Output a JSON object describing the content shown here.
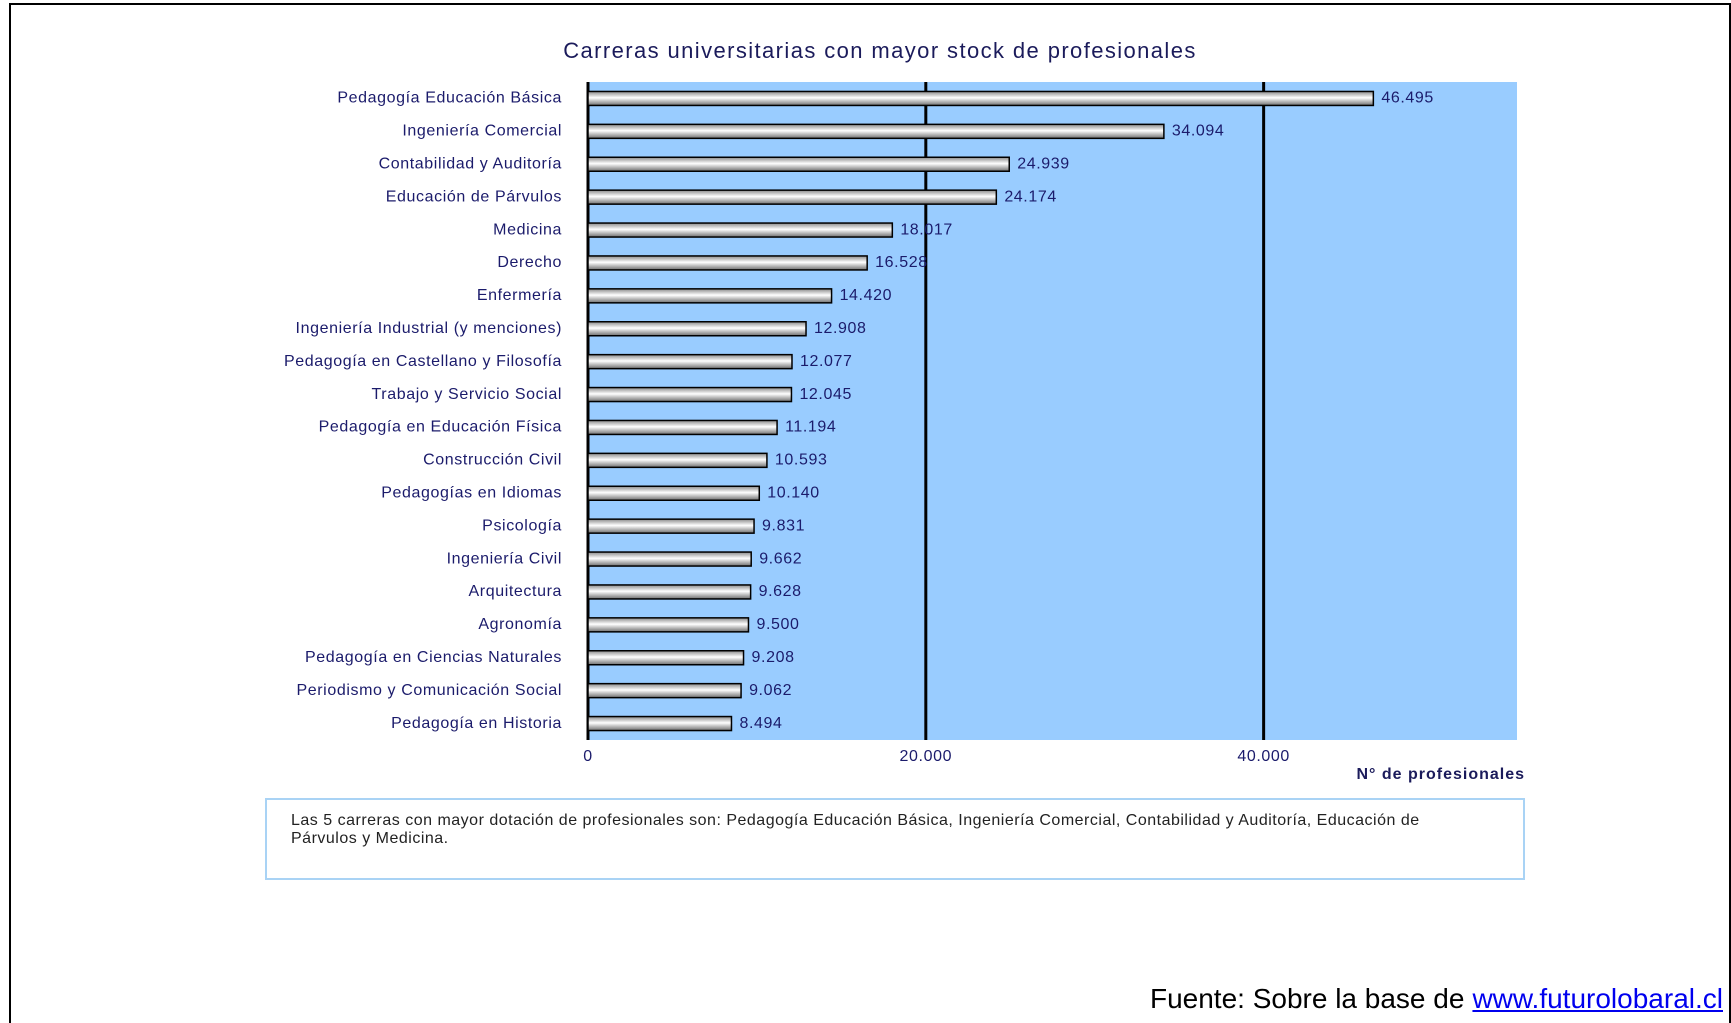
{
  "chart_data": {
    "type": "hbar",
    "title": "Carreras universitarias con mayor stock de profesionales",
    "xlabel": "N° de profesionales",
    "categories": [
      "Pedagogía Educación Básica",
      "Ingeniería Comercial",
      "Contabilidad y Auditoría",
      "Educación de Párvulos",
      "Medicina",
      "Derecho",
      "Enfermería",
      "Ingeniería Industrial (y menciones)",
      "Pedagogía en Castellano y Filosofía",
      "Trabajo y Servicio Social",
      "Pedagogía en Educación Física",
      "Construcción Civil",
      "Pedagogías en Idiomas",
      "Psicología",
      "Ingeniería Civil",
      "Arquitectura",
      "Agronomía",
      "Pedagogía en Ciencias Naturales",
      "Periodismo y Comunicación Social",
      "Pedagogía en Historia"
    ],
    "values": [
      46495,
      34094,
      24939,
      24174,
      18017,
      16528,
      14420,
      12908,
      12077,
      12045,
      11194,
      10593,
      10140,
      9831,
      9662,
      9628,
      9500,
      9208,
      9062,
      8494
    ],
    "value_labels": [
      "46.495",
      "34.094",
      "24.939",
      "24.174",
      "18.017",
      "16.528",
      "14.420",
      "12.908",
      "12.077",
      "12.045",
      "11.194",
      "10.593",
      "10.140",
      "9.831",
      "9.662",
      "9.628",
      "9.500",
      "9.208",
      "9.062",
      "8.494"
    ],
    "color": "#c0c0c0",
    "background": "#99ccff",
    "xlim": [
      0,
      55000
    ],
    "xticks": [
      0,
      {
        "value": 20000,
        "label": "20.000"
      },
      {
        "value": 40000,
        "label": "40.000"
      }
    ],
    "grid": true
  },
  "note": "Las 5 carreras con mayor dotación de profesionales son: Pedagogía Educación Básica, Ingeniería Comercial, Contabilidad y Auditoría, Educación de Párvulos y Medicina.",
  "source": {
    "text": "Fuente: Sobre la base de",
    "link": "www.futurolobaral.cl"
  }
}
